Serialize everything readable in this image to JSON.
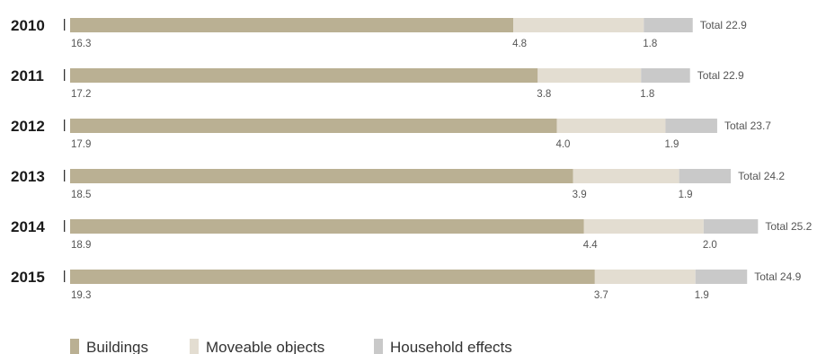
{
  "chart_data": {
    "type": "bar",
    "orientation": "horizontal",
    "stacked": true,
    "categories": [
      "2010",
      "2011",
      "2012",
      "2013",
      "2014",
      "2015"
    ],
    "series": [
      {
        "name": "Buildings",
        "values": [
          16.3,
          17.2,
          17.9,
          18.5,
          18.9,
          19.3
        ],
        "color": "#bab093"
      },
      {
        "name": "Moveable objects",
        "values": [
          4.8,
          3.8,
          4.0,
          3.9,
          4.4,
          3.7
        ],
        "color": "#e3ddd1"
      },
      {
        "name": "Household effects",
        "values": [
          1.8,
          1.8,
          1.9,
          1.9,
          2.0,
          1.9
        ],
        "color": "#c9c9c9"
      }
    ],
    "totals": [
      22.9,
      22.9,
      23.7,
      24.2,
      25.2,
      24.9
    ],
    "totals_display": [
      "22.9",
      "22.9",
      "23.7",
      "24.2",
      "25.2",
      "24.9"
    ],
    "values_display": [
      [
        "16.3",
        "17.2",
        "17.9",
        "18.5",
        "18.9",
        "19.3"
      ],
      [
        "4.8",
        "3.8",
        "4.0",
        "3.9",
        "4.4",
        "3.7"
      ],
      [
        "1.8",
        "1.8",
        "1.9",
        "1.9",
        "2.0",
        "1.9"
      ]
    ],
    "total_prefix": "Total",
    "legend_position": "bottom-left",
    "grid": false
  }
}
